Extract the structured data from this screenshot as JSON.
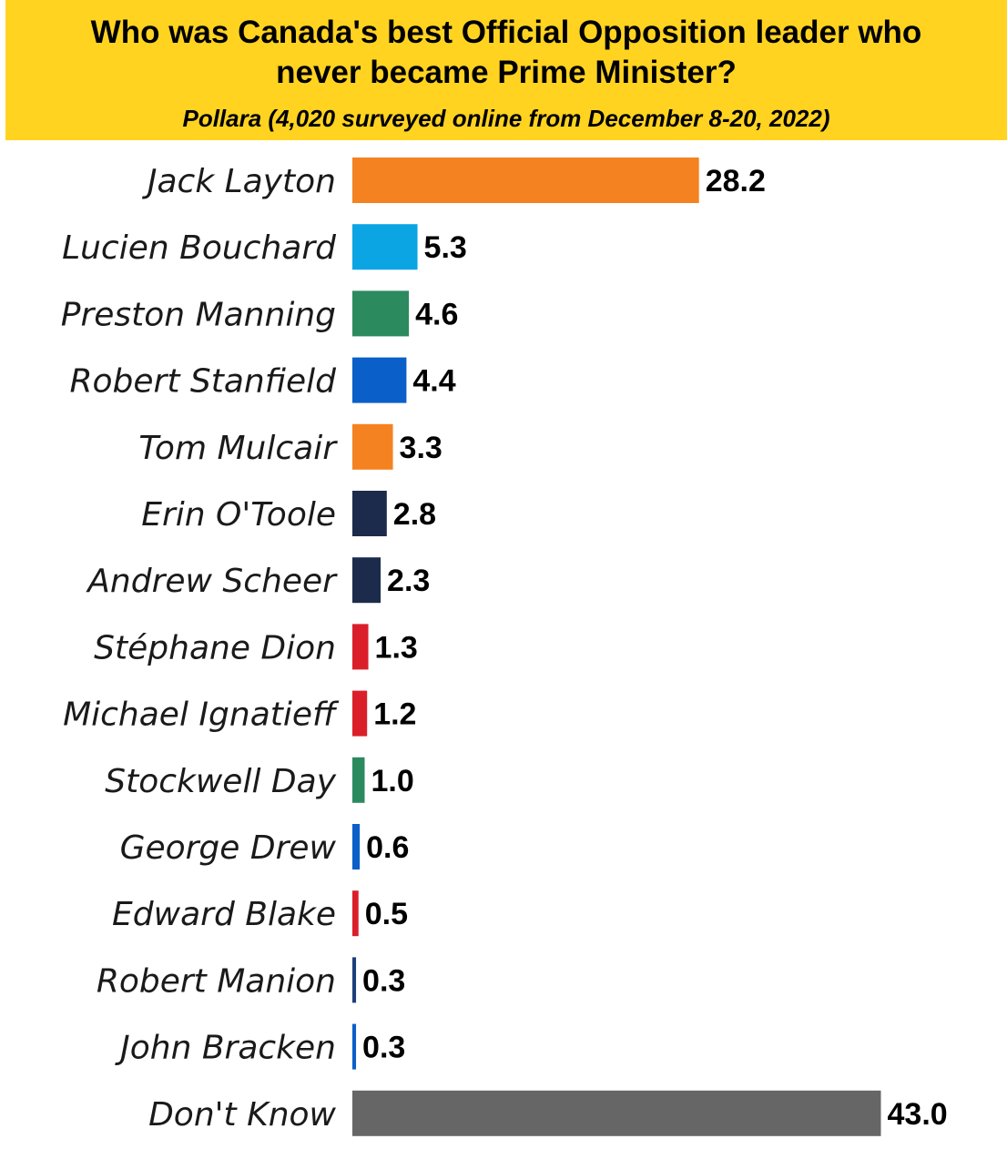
{
  "header": {
    "title_line1": "Who was Canada's best Official Opposition leader who",
    "title_line2": "never became Prime Minister?",
    "subtitle": "Pollara (4,020 surveyed online from December 8-20, 2022)"
  },
  "colors": {
    "header_bg": "#FFD320"
  },
  "chart_data": {
    "type": "bar",
    "orientation": "horizontal",
    "title": "Who was Canada's best Official Opposition leader who never became Prime Minister?",
    "subtitle": "Pollara (4,020 surveyed online from December 8-20, 2022)",
    "xlim": [
      0,
      43
    ],
    "grid": false,
    "legend": "none",
    "categories": [
      "Jack Layton",
      "Lucien Bouchard",
      "Preston Manning",
      "Robert Stanfield",
      "Tom Mulcair",
      "Erin O'Toole",
      "Andrew Scheer",
      "Stéphane Dion",
      "Michael Ignatieff",
      "Stockwell Day",
      "George Drew",
      "Edward Blake",
      "Robert Manion",
      "John Bracken",
      "Don't Know"
    ],
    "values": [
      28.2,
      5.3,
      4.6,
      4.4,
      3.3,
      2.8,
      2.3,
      1.3,
      1.2,
      1.0,
      0.6,
      0.5,
      0.3,
      0.3,
      43.0
    ],
    "value_labels": [
      "28.2",
      "5.3",
      "4.6",
      "4.4",
      "3.3",
      "2.8",
      "2.3",
      "1.3",
      "1.2",
      "1.0",
      "0.6",
      "0.5",
      "0.3",
      "0.3",
      "43.0"
    ],
    "bar_colors": [
      "#F58220",
      "#0BA5E3",
      "#2B8A5E",
      "#0A5FC8",
      "#F58220",
      "#1C2B4B",
      "#1C2B4B",
      "#DB1F2A",
      "#DB1F2A",
      "#2B8A5E",
      "#0A5FC8",
      "#DB1F2A",
      "#1C3F7A",
      "#0A5FC8",
      "#666666"
    ]
  }
}
